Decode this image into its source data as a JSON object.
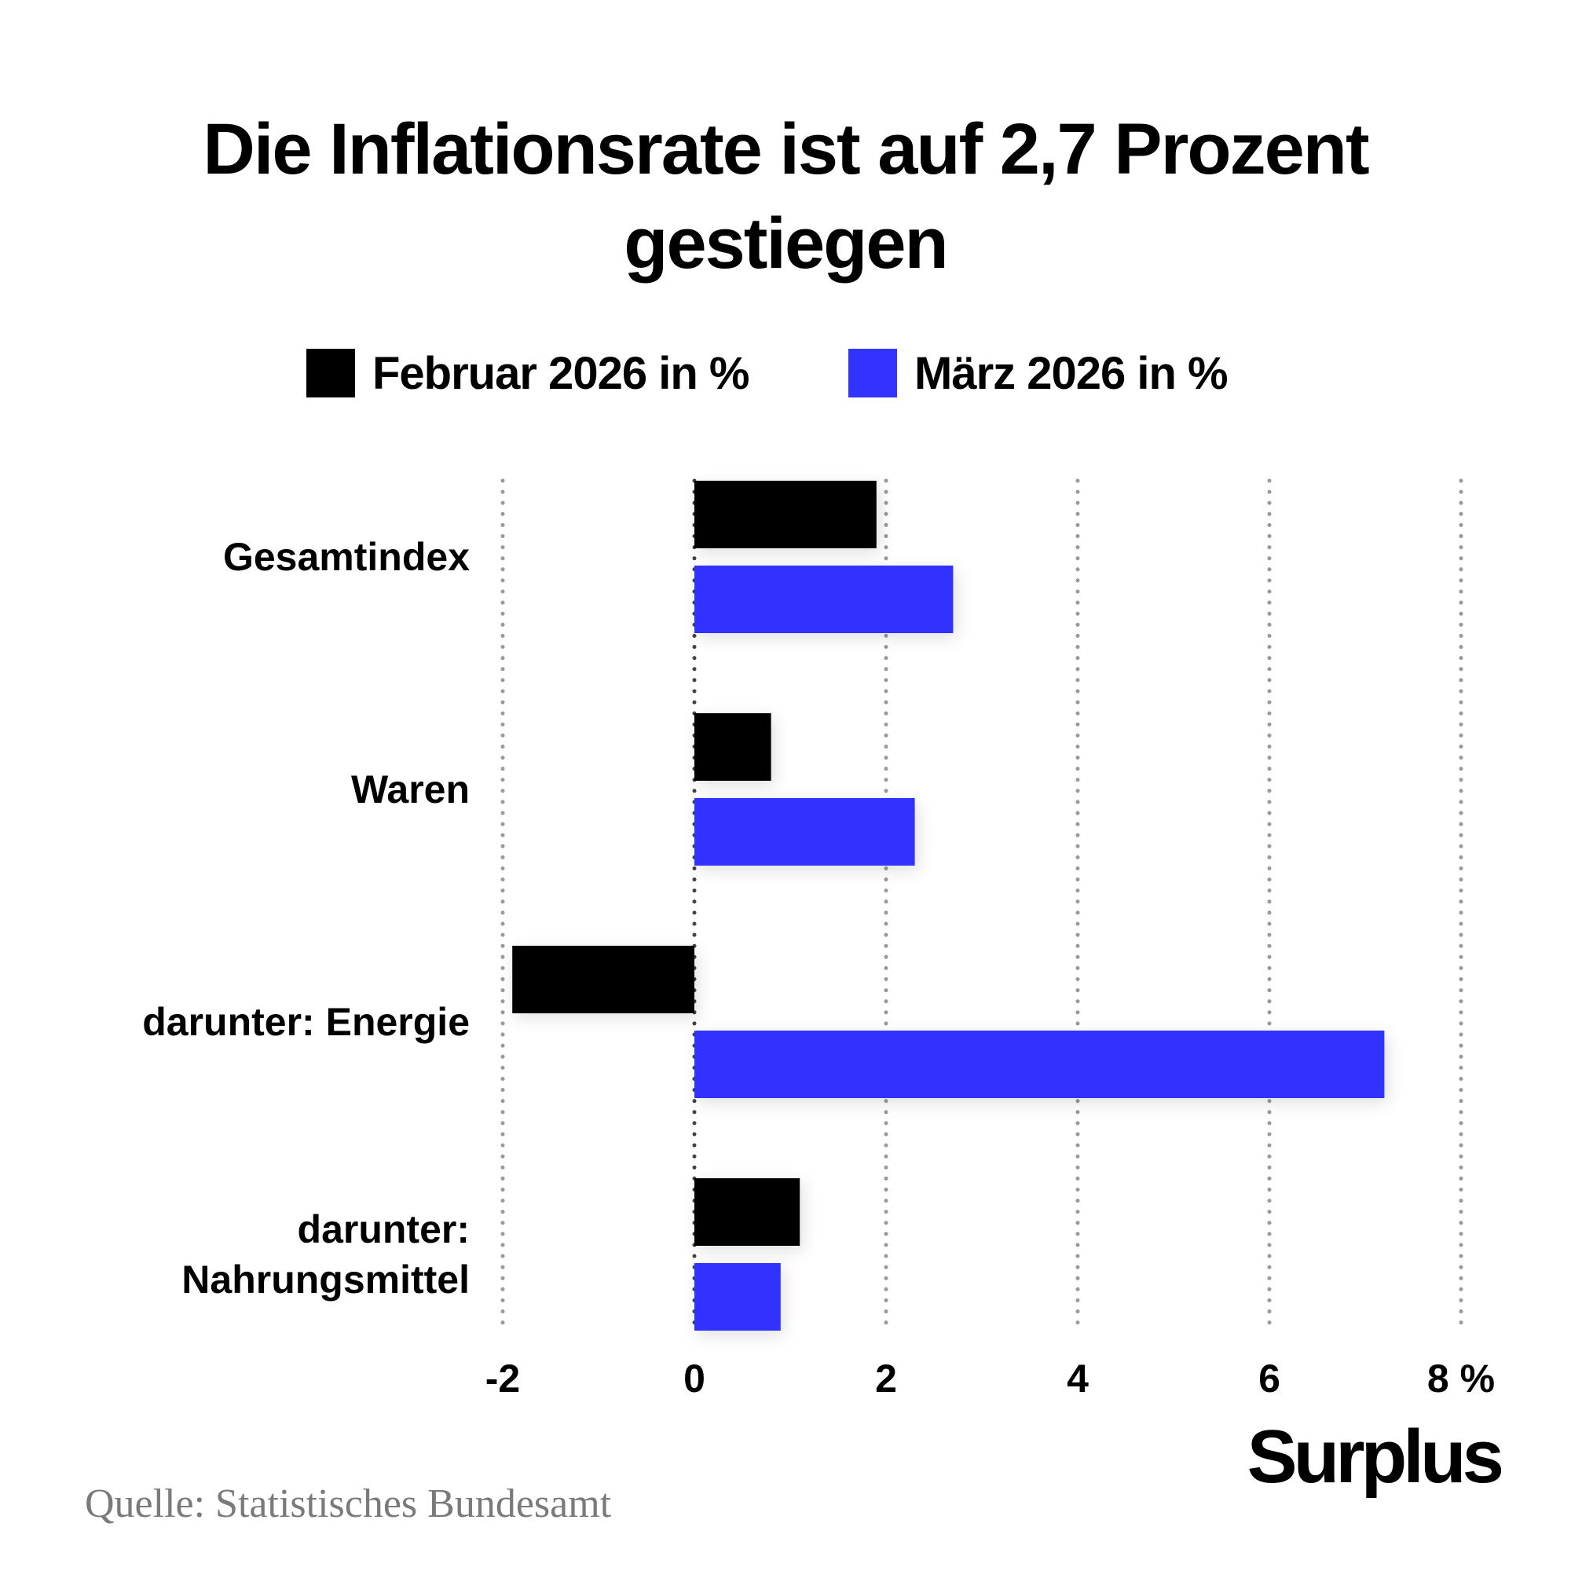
{
  "chart_data": {
    "type": "bar",
    "orientation": "horizontal",
    "title": "Die Inflationsrate ist auf 2,7 Prozent gestiegen",
    "title_lines": [
      "Die Inflationsrate ist auf 2,7 Prozent",
      "gestiegen"
    ],
    "categories": [
      "Gesamtindex",
      "Waren",
      "darunter: Energie",
      "darunter: Nahrungsmittel"
    ],
    "category_lines": [
      [
        "Gesamtindex"
      ],
      [
        "Waren"
      ],
      [
        "darunter: Energie"
      ],
      [
        "darunter:",
        "Nahrungsmittel"
      ]
    ],
    "series": [
      {
        "name": "Februar 2026 in %",
        "color": "#000000",
        "values": [
          1.9,
          0.8,
          -1.9,
          1.1
        ]
      },
      {
        "name": "März 2026 in %",
        "color": "#3333ff",
        "values": [
          2.7,
          2.3,
          7.2,
          0.9
        ]
      }
    ],
    "xlim": [
      -2,
      8
    ],
    "xticks": [
      -2,
      0,
      2,
      4,
      6,
      8
    ],
    "xtick_labels": [
      "-2",
      "0",
      "2",
      "4",
      "6",
      "8 %"
    ],
    "grid": true,
    "legend_position": "top"
  },
  "brand": "Surplus",
  "source": "Quelle: Statistisches Bundesamt"
}
